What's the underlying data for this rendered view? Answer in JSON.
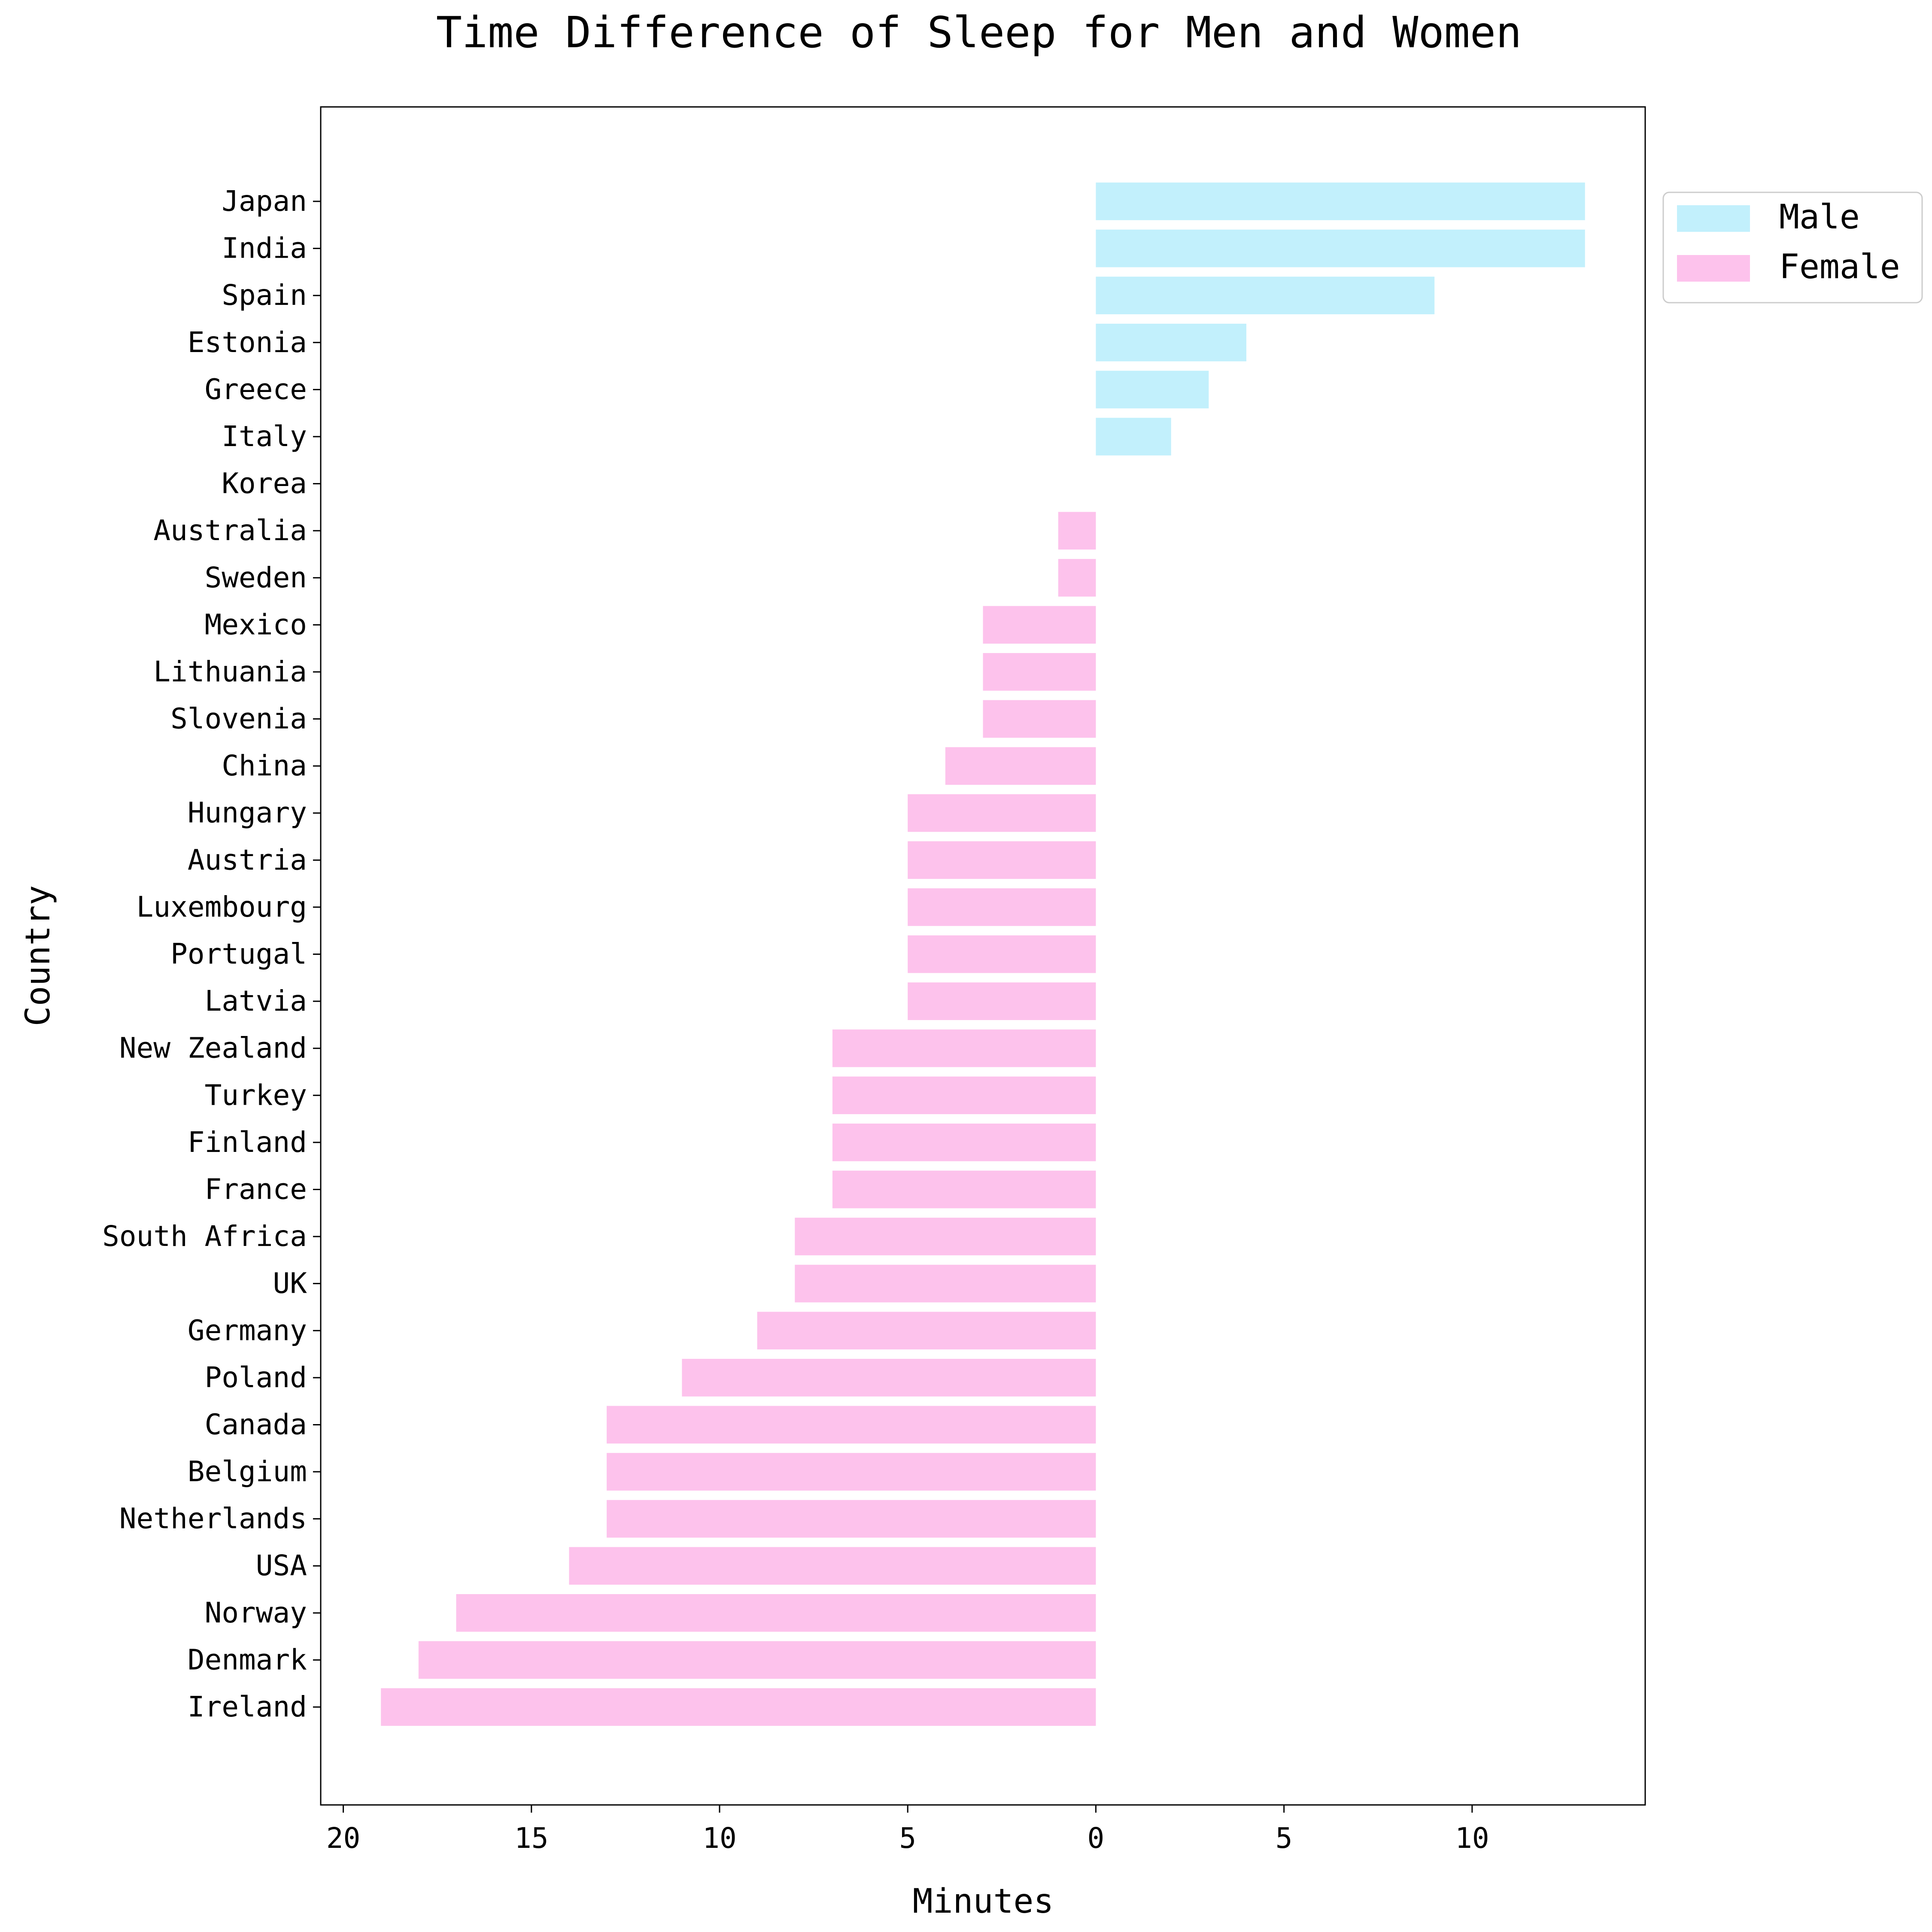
{
  "chart_data": {
    "type": "bar",
    "orientation": "horizontal",
    "title": "Time Difference of Sleep for Men and Women",
    "xlabel": "Minutes",
    "ylabel": "Country",
    "xlim": [
      20.6,
      -14.6
    ],
    "x_axis_note": "tick labels shown as absolute minutes",
    "xticks": [
      {
        "value": -20,
        "label": "20"
      },
      {
        "value": -15,
        "label": "15"
      },
      {
        "value": -10,
        "label": "10"
      },
      {
        "value": -5,
        "label": "5"
      },
      {
        "value": 0,
        "label": "0"
      },
      {
        "value": 5,
        "label": "5"
      },
      {
        "value": 10,
        "label": "10"
      }
    ],
    "grid": false,
    "legend": {
      "placement": "outside-top-right",
      "entries": [
        {
          "name": "Male",
          "color": "#c2f0fc"
        },
        {
          "name": "Female",
          "color": "#fdc2ec"
        }
      ]
    },
    "categories": [
      "Japan",
      "India",
      "Spain",
      "Estonia",
      "Greece",
      "Italy ",
      "Korea",
      "Australia",
      "Sweden",
      "Mexico",
      "Lithuania ",
      "Slovenia",
      "China",
      "Hungary",
      "Austria",
      "Luxembourg",
      "Portugal",
      "Latvia",
      "New Zealand",
      "Turkey",
      "Finland",
      "France",
      "South Africa",
      "UK",
      "Germany",
      "Poland",
      "Canada",
      "Belgium",
      "Netherlands",
      "USA",
      "Norway ",
      "Denmark",
      "Ireland"
    ],
    "series": [
      {
        "name": "Male",
        "color": "#c2f0fc",
        "values": [
          13,
          13,
          9,
          4,
          3,
          2,
          0,
          null,
          null,
          null,
          null,
          null,
          null,
          null,
          null,
          null,
          null,
          null,
          null,
          null,
          null,
          null,
          null,
          null,
          null,
          null,
          null,
          null,
          null,
          null,
          null,
          null,
          null
        ]
      },
      {
        "name": "Female",
        "color": "#fdc2ec",
        "values": [
          null,
          null,
          null,
          null,
          null,
          null,
          null,
          1,
          1,
          3,
          3,
          3,
          4,
          5,
          5,
          5,
          5,
          5,
          7,
          7,
          7,
          7,
          8,
          8,
          9,
          11,
          13,
          13,
          13,
          14,
          17,
          18,
          19
        ]
      }
    ]
  }
}
